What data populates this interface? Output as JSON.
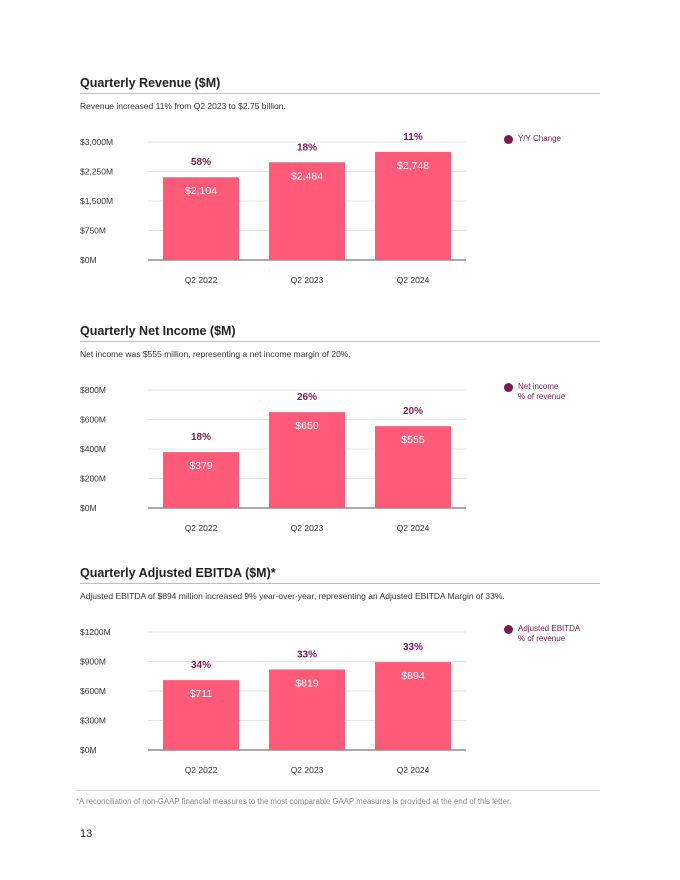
{
  "colors": {
    "bar": "#ff5a78",
    "yoy": "#7a1a52",
    "grid": "#e6e6e6",
    "axis": "#555555",
    "text": "#333333"
  },
  "footnote": "*A reconciliation of non-GAAP financial measures to the most comparable GAAP measures is provided at the end of this letter.",
  "page_number": "13",
  "chart_data": [
    {
      "type": "bar",
      "title": "Quarterly Revenue ($M)",
      "subtitle": "Revenue increased 11% from Q2 2023 to $2.75 billion.",
      "categories": [
        "Q2 2022",
        "Q2 2023",
        "Q2 2024"
      ],
      "values": [
        2104,
        2484,
        2748
      ],
      "value_labels": [
        "$2,104",
        "$2,484",
        "$2,748"
      ],
      "secondary_labels": [
        "58%",
        "18%",
        "11%"
      ],
      "legend": "Y/Y Change",
      "yticks": [
        0,
        750,
        1500,
        2250,
        3000
      ],
      "ytick_labels": [
        "$0M",
        "$750M",
        "$1,500M",
        "$2,250M",
        "$3,000M"
      ],
      "ylim": [
        0,
        3000
      ]
    },
    {
      "type": "bar",
      "title": "Quarterly Net Income ($M)",
      "subtitle": "Net income was $555 million, representing a net income margin of 20%.",
      "categories": [
        "Q2 2022",
        "Q2 2023",
        "Q2 2024"
      ],
      "values": [
        379,
        650,
        555
      ],
      "value_labels": [
        "$379",
        "$650",
        "$555"
      ],
      "secondary_labels": [
        "18%",
        "26%",
        "20%"
      ],
      "legend": "Net income\n% of revenue",
      "yticks": [
        0,
        200,
        400,
        600,
        800
      ],
      "ytick_labels": [
        "$0M",
        "$200M",
        "$400M",
        "$600M",
        "$800M"
      ],
      "ylim": [
        0,
        800
      ]
    },
    {
      "type": "bar",
      "title": "Quarterly Adjusted EBITDA ($M)*",
      "subtitle": "Adjusted EBITDA of $894 million increased 9% year-over-year, representing an Adjusted EBITDA Margin of 33%.",
      "categories": [
        "Q2 2022",
        "Q2 2023",
        "Q2 2024"
      ],
      "values": [
        711,
        819,
        894
      ],
      "value_labels": [
        "$711",
        "$819",
        "$894"
      ],
      "secondary_labels": [
        "34%",
        "33%",
        "33%"
      ],
      "legend": "Adjusted EBITDA\n% of revenue",
      "yticks": [
        0,
        300,
        600,
        900,
        1200
      ],
      "ytick_labels": [
        "$0M",
        "$300M",
        "$600M",
        "$900M",
        "$1200M"
      ],
      "ylim": [
        0,
        1200
      ]
    }
  ]
}
